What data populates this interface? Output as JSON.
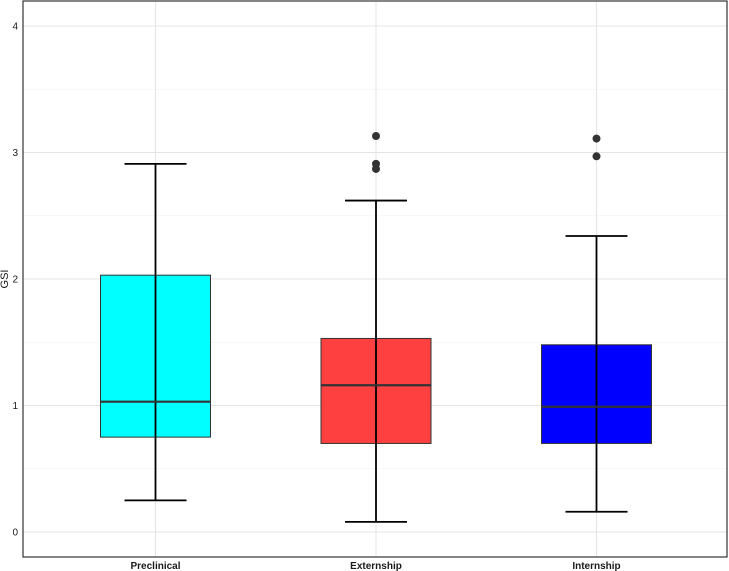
{
  "chart_data": {
    "type": "boxplot",
    "title": "",
    "xlabel": "",
    "ylabel": "GSI",
    "ylim": [
      -0.18,
      4.22
    ],
    "y_ticks": [
      0,
      1,
      2,
      3,
      4
    ],
    "y_tick_labels": [
      "0",
      "1",
      "2",
      "3",
      "4"
    ],
    "grid": true,
    "legend": "none",
    "categories": [
      "Preclinical",
      "Externship",
      "Internship"
    ],
    "series": [
      {
        "category": "Preclinical",
        "color": "#00FFFF",
        "whisker_low": 0.25,
        "q1": 0.75,
        "median": 1.03,
        "q3": 2.03,
        "whisker_high": 2.91,
        "outliers": []
      },
      {
        "category": "Externship",
        "color": "#FF4040",
        "whisker_low": 0.08,
        "q1": 0.7,
        "median": 1.16,
        "q3": 1.53,
        "whisker_high": 2.62,
        "outliers": [
          2.87,
          2.91,
          3.13
        ]
      },
      {
        "category": "Internship",
        "color": "#0000FF",
        "whisker_low": 0.16,
        "q1": 0.7,
        "median": 0.99,
        "q3": 1.48,
        "whisker_high": 2.34,
        "outliers": [
          2.97,
          3.11
        ]
      }
    ]
  }
}
